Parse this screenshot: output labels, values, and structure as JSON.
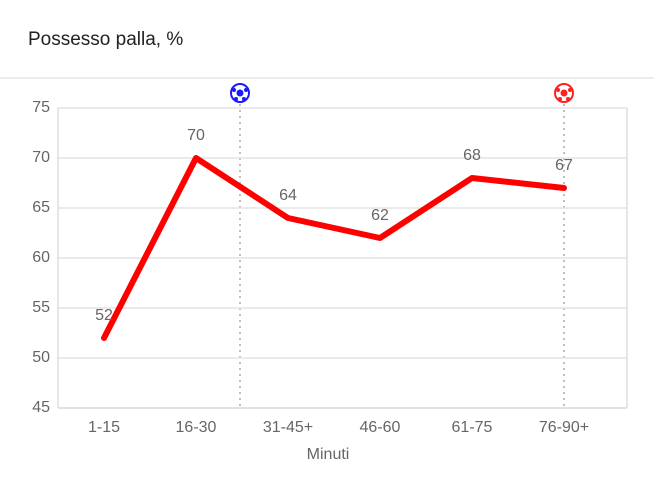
{
  "chart_data": {
    "type": "line",
    "title": "Possesso palla, %",
    "x_label": "Minuti",
    "categories": [
      "1-15",
      "16-30",
      "31-45+",
      "46-60",
      "61-75",
      "76-90+"
    ],
    "series": [
      {
        "name": "Possesso",
        "color": "#ff0000",
        "values": [
          52,
          70,
          64,
          62,
          68,
          67
        ]
      }
    ],
    "ylim": [
      45,
      75
    ],
    "yticks": [
      45,
      50,
      55,
      60,
      65,
      70,
      75
    ],
    "grid": true
  }
}
